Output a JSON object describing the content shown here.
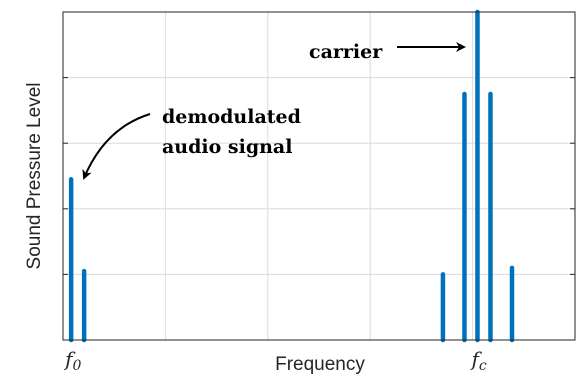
{
  "chart_data": {
    "type": "bar",
    "xlabel": "Frequency",
    "ylabel": "Sound Pressure Level",
    "x_ticks": [
      {
        "main": "f",
        "sub": "0",
        "x": 0
      },
      {
        "main": "f",
        "sub": "c",
        "x": 100
      }
    ],
    "xlim": [
      -2.0,
      124.0
    ],
    "ylim": [
      0,
      100
    ],
    "grid": true,
    "bar_color": "#0072BD",
    "series": [
      {
        "values": [
          {
            "x": 0.0,
            "y": 49
          },
          {
            "x": 3.2,
            "y": 21
          },
          {
            "x": 91.5,
            "y": 20
          },
          {
            "x": 96.8,
            "y": 75
          },
          {
            "x": 100.0,
            "y": 100
          },
          {
            "x": 103.2,
            "y": 75
          },
          {
            "x": 108.5,
            "y": 22
          }
        ]
      }
    ],
    "annotations": {
      "carrier": "carrier",
      "audio_line1": "demodulated",
      "audio_line2": "audio signal"
    }
  }
}
